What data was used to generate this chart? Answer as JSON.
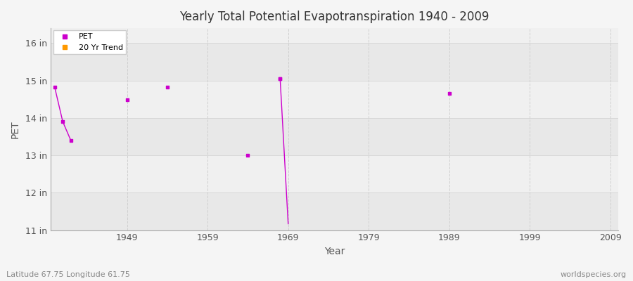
{
  "title": "Yearly Total Potential Evapotranspiration 1940 - 2009",
  "xlabel": "Year",
  "ylabel": "PET",
  "subtitle": "Latitude 67.75 Longitude 61.75",
  "watermark": "worldspecies.org",
  "fig_bg_color": "#f5f5f5",
  "plot_bg_color": "#f0f0f0",
  "plot_bg_alt_color": "#e8e8e8",
  "ylim": [
    11,
    16.4
  ],
  "xlim": [
    1939.5,
    2010
  ],
  "yticks": [
    11,
    12,
    13,
    14,
    15,
    16
  ],
  "ytick_labels": [
    "11 in",
    "12 in",
    "13 in",
    "14 in",
    "15 in",
    "16 in"
  ],
  "xticks": [
    1949,
    1959,
    1969,
    1979,
    1989,
    1999,
    2009
  ],
  "xtick_labels": [
    "1949",
    "1959",
    "1969",
    "1979",
    "1989",
    "1999",
    "2009"
  ],
  "pet_color": "#cc00cc",
  "trend_color": "#ff9900",
  "pet_line_years": [
    1940,
    1941,
    1942
  ],
  "pet_line_values": [
    14.82,
    13.9,
    13.4
  ],
  "pet_scatter_years": [
    1949,
    1954,
    1964,
    1968,
    1989
  ],
  "pet_scatter_values": [
    14.48,
    14.82,
    13.0,
    15.05,
    14.65
  ],
  "trend_years": [
    1968,
    1969
  ],
  "trend_values": [
    15.05,
    11.17
  ],
  "grid_color": "#d0d0d0",
  "spine_color": "#aaaaaa",
  "alt_band_ranges": [
    [
      11,
      12
    ],
    [
      13,
      14
    ],
    [
      15,
      16
    ]
  ]
}
